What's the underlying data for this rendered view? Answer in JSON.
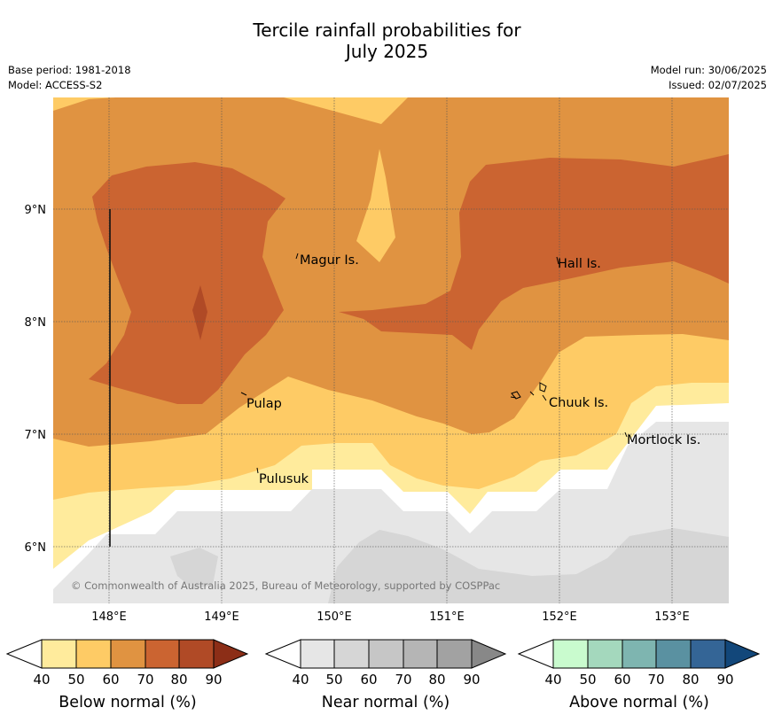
{
  "title_line1": "Tercile rainfall probabilities for",
  "title_line2": "July 2025",
  "meta": {
    "base_period": "Base period: 1981-2018",
    "model": "Model: ACCESS-S2",
    "model_run": "Model run: 30/06/2025",
    "issued": "Issued: 02/07/2025"
  },
  "map": {
    "lon_ticks": [
      "148°E",
      "149°E",
      "150°E",
      "151°E",
      "152°E",
      "153°E"
    ],
    "lat_ticks": [
      "9°N",
      "8°N",
      "7°N",
      "6°N"
    ],
    "places": [
      "Magur Is.",
      "Hall Is.",
      "Pulap",
      "Chuuk Is.",
      "Mortlock Is.",
      "Pulusuk"
    ],
    "copyright": "© Commonwealth of Australia 2025, Bureau of Meteorology, supported by COSPPac"
  },
  "colors": {
    "below": [
      "#ffeb9c",
      "#fecb65",
      "#e09341",
      "#cb6431",
      "#b04a26",
      "#8c2e17"
    ],
    "near": [
      "#e6e6e6",
      "#d6d6d6",
      "#c6c6c6",
      "#b5b5b5",
      "#a2a2a2",
      "#888888"
    ],
    "above": [
      "#c9fbce",
      "#a4d8bd",
      "#7eb5b0",
      "#5a91a1",
      "#346596",
      "#12477a"
    ]
  },
  "legends": [
    {
      "title": "Below normal (%)",
      "ticks": [
        "40",
        "50",
        "60",
        "70",
        "80",
        "90"
      ]
    },
    {
      "title": "Near normal (%)",
      "ticks": [
        "40",
        "50",
        "60",
        "70",
        "80",
        "90"
      ]
    },
    {
      "title": "Above normal (%)",
      "ticks": [
        "40",
        "50",
        "60",
        "70",
        "80",
        "90"
      ]
    }
  ]
}
